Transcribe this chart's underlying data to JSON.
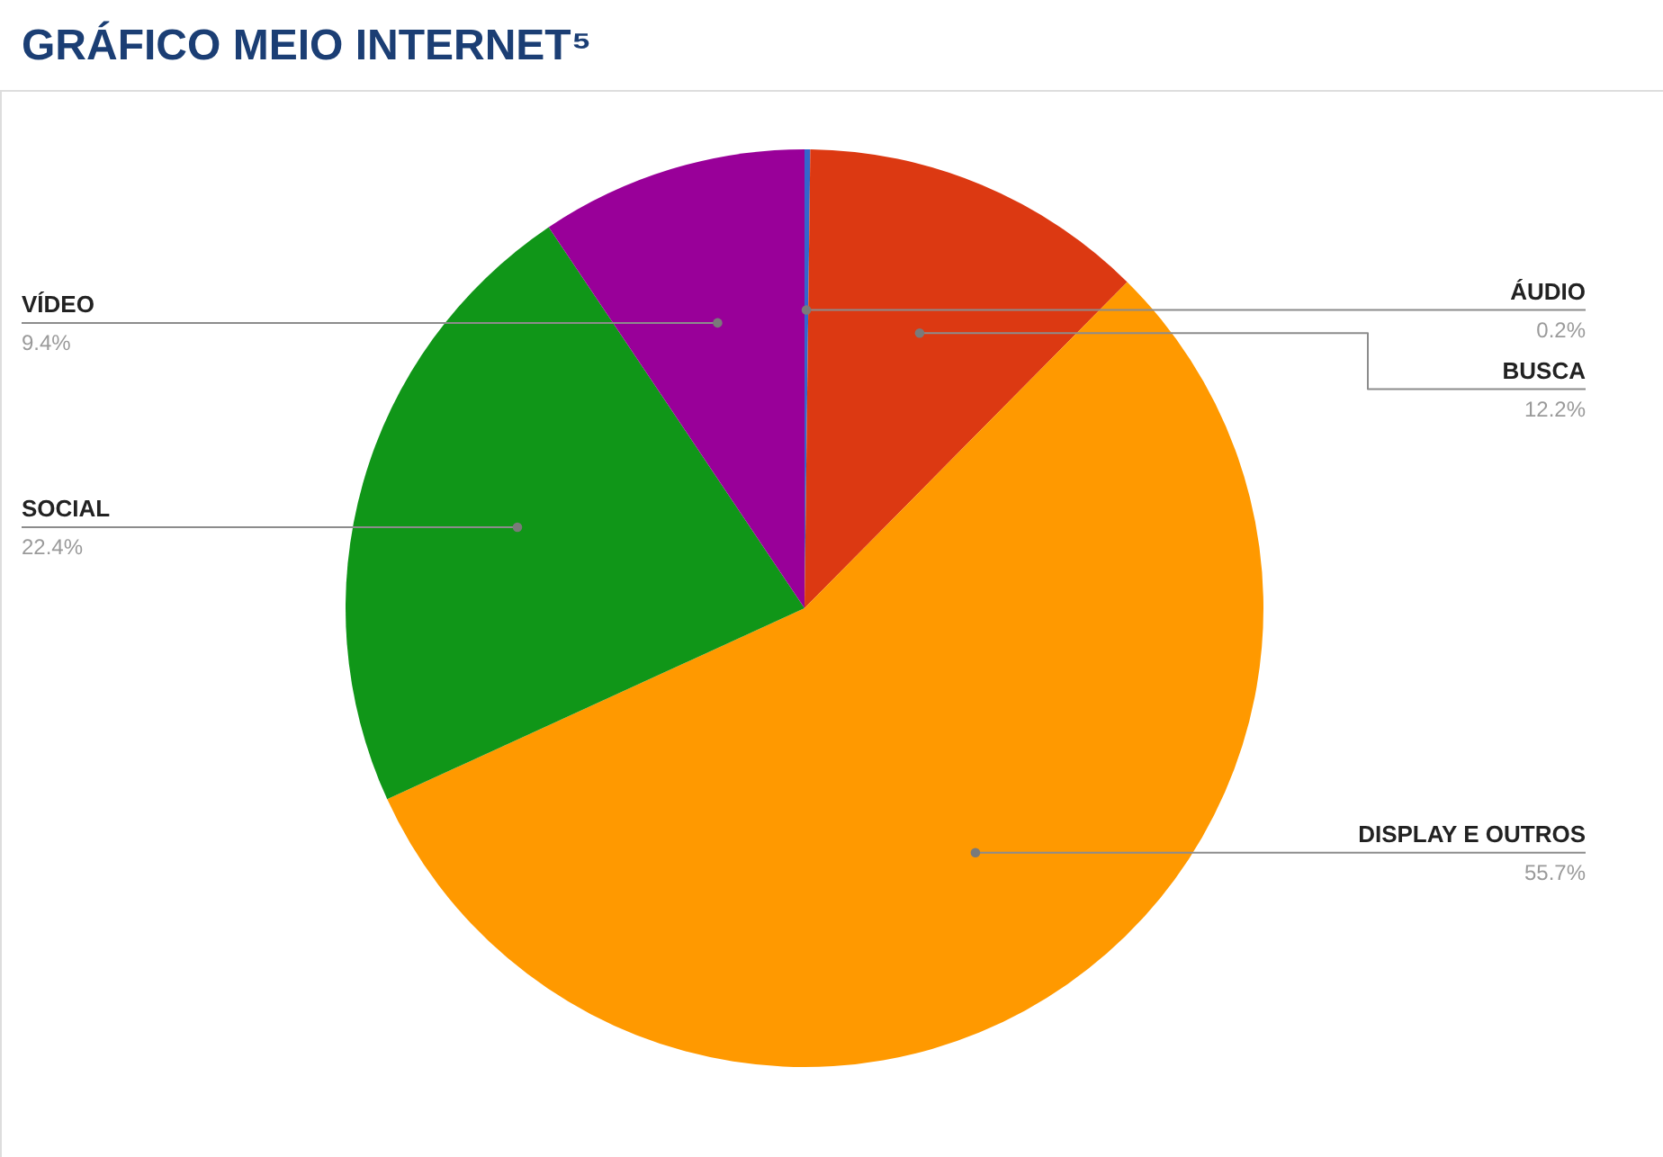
{
  "chart_data": {
    "type": "pie",
    "title": "GRÁFICO MEIO INTERNET⁵",
    "categories": [
      "ÁUDIO",
      "BUSCA",
      "DISPLAY E OUTROS",
      "SOCIAL",
      "VÍDEO"
    ],
    "values": [
      0.2,
      12.2,
      55.7,
      22.4,
      9.4
    ],
    "colors": [
      "#3366cc",
      "#dc3912",
      "#ff9900",
      "#109618",
      "#990099"
    ],
    "value_labels": [
      "0.2%",
      "12.2%",
      "55.7%",
      "22.4%",
      "9.4%"
    ]
  }
}
